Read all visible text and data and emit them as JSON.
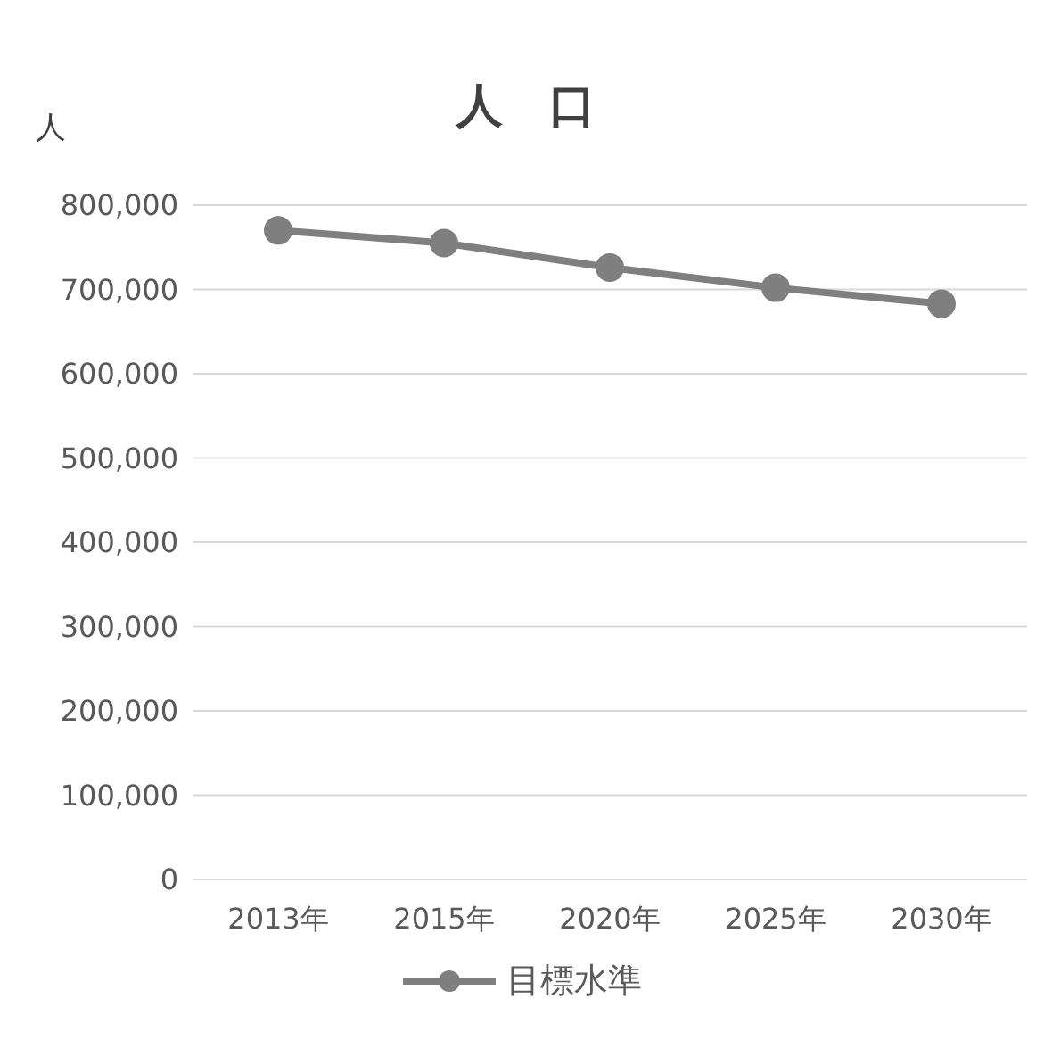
{
  "chart_data": {
    "type": "line",
    "title": "人　口",
    "ylabel": "人",
    "categories": [
      "2013年",
      "2015年",
      "2020年",
      "2025年",
      "2030年"
    ],
    "series": [
      {
        "name": "目標水準",
        "color": "#7f7f7f",
        "values": [
          770000,
          755000,
          726000,
          702000,
          683000
        ]
      }
    ],
    "ylim": [
      0,
      800000
    ],
    "yticks": [
      {
        "value": 0,
        "label": "0"
      },
      {
        "value": 100000,
        "label": "100,000"
      },
      {
        "value": 200000,
        "label": "200,000"
      },
      {
        "value": 300000,
        "label": "300,000"
      },
      {
        "value": 400000,
        "label": "400,000"
      },
      {
        "value": 500000,
        "label": "500,000"
      },
      {
        "value": 600000,
        "label": "600,000"
      },
      {
        "value": 700000,
        "label": "700,000"
      },
      {
        "value": 800000,
        "label": "800,000"
      }
    ],
    "grid": "y",
    "legend": "bottom",
    "marker": "circle",
    "line_style": "solid"
  }
}
